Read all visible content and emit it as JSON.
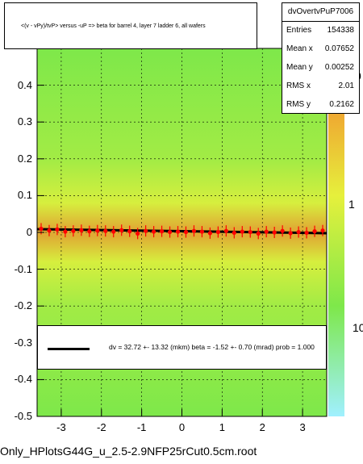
{
  "title": "<(v - vPy)/tvP> versus -uP => beta for barrel 4, layer 7 ladder 6, all wafers",
  "stats": {
    "name": "dvOvertvPuP7006",
    "rows": [
      {
        "label": "Entries",
        "value": "154338"
      },
      {
        "label": "Mean x",
        "value": "0.07652"
      },
      {
        "label": "Mean y",
        "value": "0.00252"
      },
      {
        "label": "RMS x",
        "value": "2.01"
      },
      {
        "label": "RMS y",
        "value": "0.2162"
      }
    ]
  },
  "legend": {
    "text": "dv =   32.72 +- 13.32 (mkm) beta =   -1.52 +-  0.70 (mrad) prob = 1.000"
  },
  "footer": "Only_HPlotsG44G_u_2.5-2.9NFP25rCut0.5cm.root",
  "colors": {
    "background_fill": "#7ee84a",
    "band_yellow": "#e6f03c",
    "band_orange": "#f0a030",
    "points": "#ff0000",
    "fit_line": "#000000"
  },
  "chart_data": {
    "type": "heatmap",
    "xlim": [
      -3.6,
      3.6
    ],
    "ylim": [
      -0.5,
      0.5
    ],
    "x_ticks": [
      "-3",
      "-2",
      "-1",
      "0",
      "1",
      "2",
      "3"
    ],
    "y_ticks": [
      "-0.5",
      "-0.4",
      "-0.3",
      "-0.2",
      "-0.1",
      "0",
      "0.1",
      "0.2",
      "0.3",
      "0.4"
    ],
    "z_scale": "log",
    "z_ticks": [
      "1",
      "10"
    ],
    "z_partial_top": "0",
    "grid": true,
    "profile_points": [
      {
        "x": -3.5,
        "y": 0.01
      },
      {
        "x": -3.3,
        "y": 0.005
      },
      {
        "x": -3.1,
        "y": 0.008
      },
      {
        "x": -2.9,
        "y": 0.002
      },
      {
        "x": -2.7,
        "y": 0.004
      },
      {
        "x": -2.5,
        "y": 0.006
      },
      {
        "x": -2.3,
        "y": 0.003
      },
      {
        "x": -2.1,
        "y": 0.005
      },
      {
        "x": -1.9,
        "y": 0.004
      },
      {
        "x": -1.7,
        "y": 0.002
      },
      {
        "x": -1.5,
        "y": 0.006
      },
      {
        "x": -1.3,
        "y": 0.003
      },
      {
        "x": -1.1,
        "y": -0.003
      },
      {
        "x": -0.9,
        "y": 0.004
      },
      {
        "x": -0.7,
        "y": 0.002
      },
      {
        "x": -0.5,
        "y": 0.003
      },
      {
        "x": -0.3,
        "y": 0.001
      },
      {
        "x": -0.1,
        "y": 0.002
      },
      {
        "x": 0.1,
        "y": 0.001
      },
      {
        "x": 0.3,
        "y": 0.004
      },
      {
        "x": 0.5,
        "y": 0.002
      },
      {
        "x": 0.7,
        "y": -0.002
      },
      {
        "x": 0.9,
        "y": 0.001
      },
      {
        "x": 1.1,
        "y": 0.004
      },
      {
        "x": 1.3,
        "y": -0.001
      },
      {
        "x": 1.5,
        "y": 0.002
      },
      {
        "x": 1.7,
        "y": 0.001
      },
      {
        "x": 1.9,
        "y": -0.003
      },
      {
        "x": 2.1,
        "y": 0.002
      },
      {
        "x": 2.3,
        "y": 0.0
      },
      {
        "x": 2.5,
        "y": 0.004
      },
      {
        "x": 2.7,
        "y": -0.002
      },
      {
        "x": 2.9,
        "y": 0.001
      },
      {
        "x": 3.1,
        "y": -0.001
      },
      {
        "x": 3.3,
        "y": 0.003
      },
      {
        "x": 3.5,
        "y": 0.005
      }
    ],
    "fit": {
      "x": [
        -3.6,
        3.6
      ],
      "y": [
        0.0088,
        -0.0021
      ]
    }
  }
}
